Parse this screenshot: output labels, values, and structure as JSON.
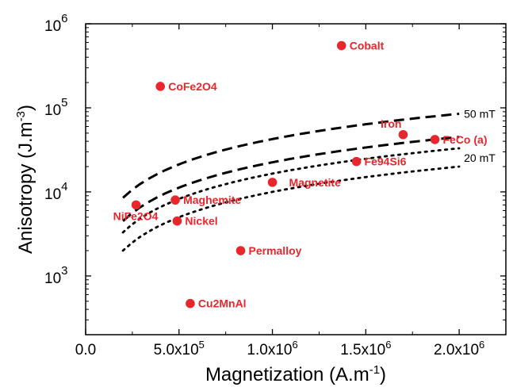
{
  "chart_data": {
    "type": "scatter",
    "title": "",
    "xlabel": {
      "text": "Magnetization (A.m",
      "sup": "-1",
      "close": ")"
    },
    "ylabel": {
      "text": "Anisotropy (J.m",
      "sup": "-3",
      "close": ")"
    },
    "xlim": [
      0,
      2250000
    ],
    "ylim": [
      200,
      1000000
    ],
    "yscale": "log",
    "grid": false,
    "x_ticks": [
      {
        "value": 0,
        "mant": "0.0",
        "exp": ""
      },
      {
        "value": 500000,
        "mant": "5.0x10",
        "exp": "5"
      },
      {
        "value": 1000000,
        "mant": "1.0x10",
        "exp": "6"
      },
      {
        "value": 1500000,
        "mant": "1.5x10",
        "exp": "6"
      },
      {
        "value": 2000000,
        "mant": "2.0x10",
        "exp": "6"
      }
    ],
    "y_ticks": [
      {
        "value": 1000,
        "base": "10",
        "exp": "3"
      },
      {
        "value": 10000,
        "base": "10",
        "exp": "4"
      },
      {
        "value": 100000,
        "base": "10",
        "exp": "5"
      },
      {
        "value": 1000000,
        "base": "10",
        "exp": "6"
      }
    ],
    "point_color": "#e8262b",
    "points": [
      {
        "label": "Cobalt",
        "x": 1370000,
        "y": 550000,
        "label_side": "right"
      },
      {
        "label": "CoFe2O4",
        "x": 400000,
        "y": 180000,
        "label_side": "right"
      },
      {
        "label": "Iron",
        "x": 1700000,
        "y": 48000,
        "label_side": "above-left"
      },
      {
        "label": "FeCo (a)",
        "x": 1870000,
        "y": 42000,
        "label_side": "right"
      },
      {
        "label": "Fe94Si6",
        "x": 1450000,
        "y": 23000,
        "label_side": "right"
      },
      {
        "label": "Magnetite",
        "x": 1000000,
        "y": 13000,
        "label_side": "right-far"
      },
      {
        "label": "Maghemite",
        "x": 480000,
        "y": 8000,
        "label_side": "right"
      },
      {
        "label": "NiFe2O4",
        "x": 270000,
        "y": 7000,
        "label_side": "below-left"
      },
      {
        "label": "Nickel",
        "x": 490000,
        "y": 4500,
        "label_side": "right"
      },
      {
        "label": "Permalloy",
        "x": 830000,
        "y": 2000,
        "label_side": "right"
      },
      {
        "label": "Cu2MnAl",
        "x": 560000,
        "y": 470,
        "label_side": "right"
      }
    ],
    "curves": [
      {
        "name": "50 mT",
        "style": "dashed",
        "x_range": [
          200000,
          2000000
        ],
        "y_range": [
          8500,
          85000
        ],
        "label_at_end": true
      },
      {
        "name": "",
        "style": "dashed",
        "x_range": [
          200000,
          2000000
        ],
        "y_range": [
          4500,
          50000
        ],
        "label_at_end": false
      },
      {
        "name": "",
        "style": "dotted",
        "x_range": [
          200000,
          2000000
        ],
        "y_range": [
          3300,
          34000
        ],
        "label_at_end": false
      },
      {
        "name": "20 mT",
        "style": "dotted",
        "x_range": [
          200000,
          2000000
        ],
        "y_range": [
          2000,
          20000
        ],
        "label_at_end": true
      }
    ]
  }
}
